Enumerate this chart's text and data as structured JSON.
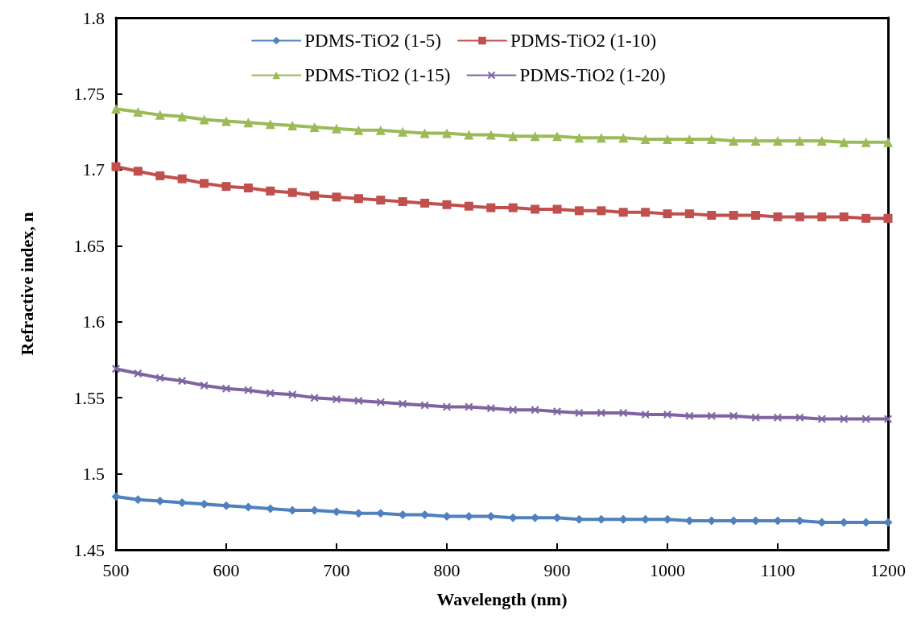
{
  "chart_data": {
    "type": "line",
    "xlabel": "Wavelength (nm)",
    "ylabel": "Refractive index, n",
    "x": [
      500,
      520,
      540,
      560,
      580,
      600,
      620,
      640,
      660,
      680,
      700,
      720,
      740,
      760,
      780,
      800,
      820,
      840,
      860,
      880,
      900,
      920,
      940,
      960,
      980,
      1000,
      1020,
      1040,
      1060,
      1080,
      1100,
      1120,
      1140,
      1160,
      1180,
      1200
    ],
    "series": [
      {
        "name": "PDMS-TiO2 (1-5)",
        "color": "#4f81bd",
        "marker": "diamond",
        "values": [
          1.485,
          1.483,
          1.482,
          1.481,
          1.48,
          1.479,
          1.478,
          1.477,
          1.476,
          1.476,
          1.475,
          1.474,
          1.474,
          1.473,
          1.473,
          1.472,
          1.472,
          1.472,
          1.471,
          1.471,
          1.471,
          1.47,
          1.47,
          1.47,
          1.47,
          1.47,
          1.469,
          1.469,
          1.469,
          1.469,
          1.469,
          1.469,
          1.468,
          1.468,
          1.468,
          1.468
        ]
      },
      {
        "name": "PDMS-TiO2 (1-10)",
        "color": "#c0504d",
        "marker": "square",
        "values": [
          1.702,
          1.699,
          1.696,
          1.694,
          1.691,
          1.689,
          1.688,
          1.686,
          1.685,
          1.683,
          1.682,
          1.681,
          1.68,
          1.679,
          1.678,
          1.677,
          1.676,
          1.675,
          1.675,
          1.674,
          1.674,
          1.673,
          1.673,
          1.672,
          1.672,
          1.671,
          1.671,
          1.67,
          1.67,
          1.67,
          1.669,
          1.669,
          1.669,
          1.669,
          1.668,
          1.668
        ]
      },
      {
        "name": "PDMS-TiO2 (1-15)",
        "color": "#9bbb59",
        "marker": "triangle",
        "values": [
          1.74,
          1.738,
          1.736,
          1.735,
          1.733,
          1.732,
          1.731,
          1.73,
          1.729,
          1.728,
          1.727,
          1.726,
          1.726,
          1.725,
          1.724,
          1.724,
          1.723,
          1.723,
          1.722,
          1.722,
          1.722,
          1.721,
          1.721,
          1.721,
          1.72,
          1.72,
          1.72,
          1.72,
          1.719,
          1.719,
          1.719,
          1.719,
          1.719,
          1.718,
          1.718,
          1.718
        ]
      },
      {
        "name": "PDMS-TiO2 (1-20)",
        "color": "#8064a2",
        "marker": "cross",
        "values": [
          1.569,
          1.566,
          1.563,
          1.561,
          1.558,
          1.556,
          1.555,
          1.553,
          1.552,
          1.55,
          1.549,
          1.548,
          1.547,
          1.546,
          1.545,
          1.544,
          1.544,
          1.543,
          1.542,
          1.542,
          1.541,
          1.54,
          1.54,
          1.54,
          1.539,
          1.539,
          1.538,
          1.538,
          1.538,
          1.537,
          1.537,
          1.537,
          1.536,
          1.536,
          1.536,
          1.536
        ]
      }
    ],
    "xlim": [
      500,
      1200
    ],
    "xticks": [
      500,
      600,
      700,
      800,
      900,
      1000,
      1100,
      1200
    ],
    "ylim": [
      1.45,
      1.8
    ],
    "yticks": [
      1.45,
      1.5,
      1.55,
      1.6,
      1.65,
      1.7,
      1.75,
      1.8
    ],
    "grid": false,
    "legend": "top",
    "line_style": "solid"
  }
}
